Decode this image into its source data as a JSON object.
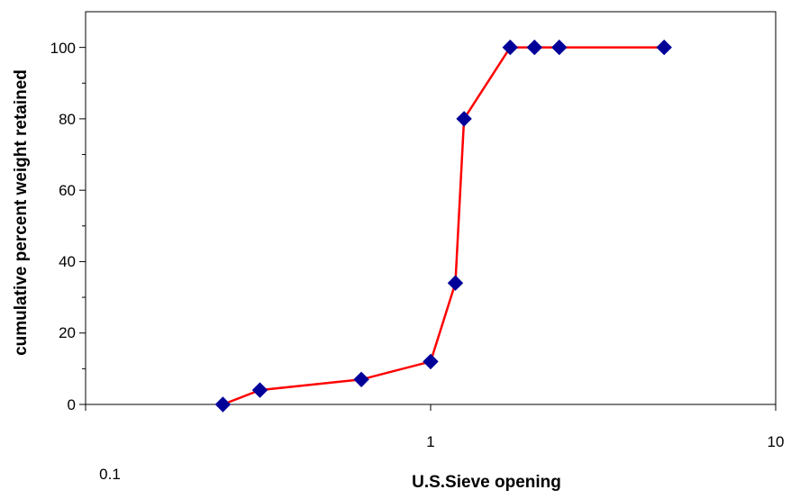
{
  "chart_data": {
    "type": "line",
    "title": "",
    "xlabel": "U.S.Sieve opening",
    "ylabel": "cumulative percent weight retained",
    "x_scale": "log",
    "xlim": [
      0.1,
      10
    ],
    "ylim": [
      0,
      110
    ],
    "x_ticks": [
      "0.1",
      "1",
      "10"
    ],
    "y_ticks": [
      "0",
      "20",
      "40",
      "60",
      "80",
      "100"
    ],
    "grid": false,
    "legend": "none",
    "series": [
      {
        "x": [
          0.25,
          0.32,
          0.63,
          1.0,
          1.18,
          1.25,
          1.7,
          2.0,
          2.36,
          4.75
        ],
        "y": [
          0,
          4,
          7,
          12,
          34,
          80,
          100,
          100,
          100,
          100
        ],
        "line_color": "#ff0000",
        "marker_color": "#000099",
        "marker": "diamond"
      }
    ]
  }
}
